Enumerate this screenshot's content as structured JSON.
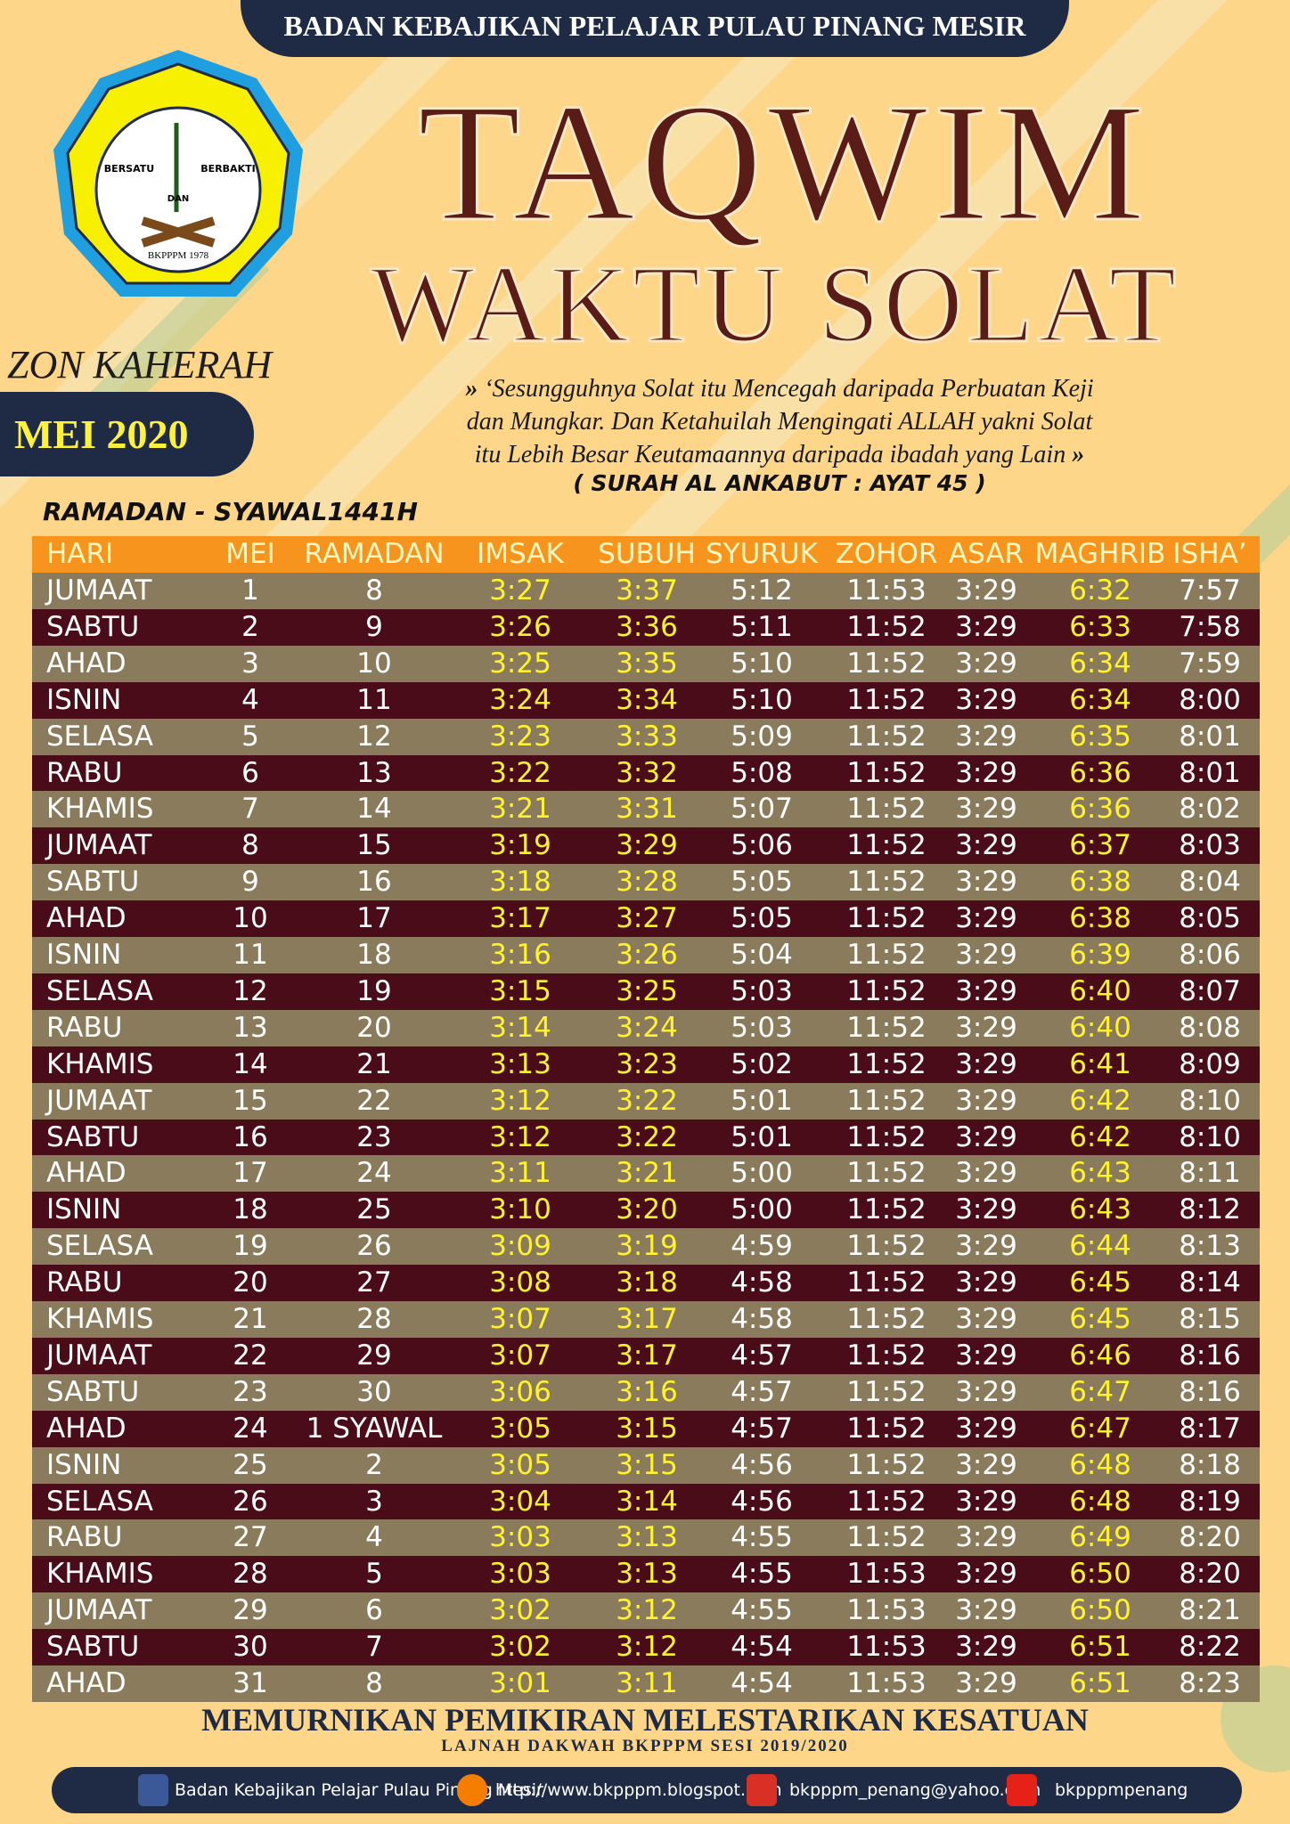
{
  "header": {
    "banner": "BADAN KEBAJIKAN PELAJAR PULAU PINANG MESIR",
    "title_line1": "TAQWIM",
    "title_line2": "WAKTU SOLAT",
    "zone": "ZON KAHERAH",
    "month": "MEI 2020",
    "period": "RAMADAN  - SYAWAL1441H"
  },
  "logo": {
    "left": "BERSATU",
    "right": "BERBAKTI",
    "middle": "DAN",
    "ring": "BKPPPM 1978"
  },
  "quote": {
    "open": "»",
    "close": "»",
    "lines": [
      "‘Sesungguhnya Solat itu Mencegah daripada Perbuatan Keji",
      "dan Mungkar. Dan Ketahuilah Mengingati ALLAH yakni Solat",
      "itu Lebih Besar Keutamaannya daripada ibadah yang Lain"
    ],
    "source": "( SURAH AL ANKABUT : AYAT 45 )"
  },
  "table": {
    "header": [
      "HARI",
      "MEI",
      "RAMADAN",
      "IMSAK",
      "SUBUH",
      "SYURUK",
      "ZOHOR",
      "ASAR",
      "MAGHRIB",
      "ISHA’"
    ],
    "rows": [
      [
        "JUMAAT",
        "1",
        "8",
        "3:27",
        "3:37",
        "5:12",
        "11:53",
        "3:29",
        "6:32",
        "7:57"
      ],
      [
        "SABTU",
        "2",
        "9",
        "3:26",
        "3:36",
        "5:11",
        "11:52",
        "3:29",
        "6:33",
        "7:58"
      ],
      [
        "AHAD",
        "3",
        "10",
        "3:25",
        "3:35",
        "5:10",
        "11:52",
        "3:29",
        "6:34",
        "7:59"
      ],
      [
        "ISNIN",
        "4",
        "11",
        "3:24",
        "3:34",
        "5:10",
        "11:52",
        "3:29",
        "6:34",
        "8:00"
      ],
      [
        "SELASA",
        "5",
        "12",
        "3:23",
        "3:33",
        "5:09",
        "11:52",
        "3:29",
        "6:35",
        "8:01"
      ],
      [
        "RABU",
        "6",
        "13",
        "3:22",
        "3:32",
        "5:08",
        "11:52",
        "3:29",
        "6:36",
        "8:01"
      ],
      [
        "KHAMIS",
        "7",
        "14",
        "3:21",
        "3:31",
        "5:07",
        "11:52",
        "3:29",
        "6:36",
        "8:02"
      ],
      [
        "JUMAAT",
        "8",
        "15",
        "3:19",
        "3:29",
        "5:06",
        "11:52",
        "3:29",
        "6:37",
        "8:03"
      ],
      [
        "SABTU",
        "9",
        "16",
        "3:18",
        "3:28",
        "5:05",
        "11:52",
        "3:29",
        "6:38",
        "8:04"
      ],
      [
        "AHAD",
        "10",
        "17",
        "3:17",
        "3:27",
        "5:05",
        "11:52",
        "3:29",
        "6:38",
        "8:05"
      ],
      [
        "ISNIN",
        "11",
        "18",
        "3:16",
        "3:26",
        "5:04",
        "11:52",
        "3:29",
        "6:39",
        "8:06"
      ],
      [
        "SELASA",
        "12",
        "19",
        "3:15",
        "3:25",
        "5:03",
        "11:52",
        "3:29",
        "6:40",
        "8:07"
      ],
      [
        "RABU",
        "13",
        "20",
        "3:14",
        "3:24",
        "5:03",
        "11:52",
        "3:29",
        "6:40",
        "8:08"
      ],
      [
        "KHAMIS",
        "14",
        "21",
        "3:13",
        "3:23",
        "5:02",
        "11:52",
        "3:29",
        "6:41",
        "8:09"
      ],
      [
        "JUMAAT",
        "15",
        "22",
        "3:12",
        "3:22",
        "5:01",
        "11:52",
        "3:29",
        "6:42",
        "8:10"
      ],
      [
        "SABTU",
        "16",
        "23",
        "3:12",
        "3:22",
        "5:01",
        "11:52",
        "3:29",
        "6:42",
        "8:10"
      ],
      [
        "AHAD",
        "17",
        "24",
        "3:11",
        "3:21",
        "5:00",
        "11:52",
        "3:29",
        "6:43",
        "8:11"
      ],
      [
        "ISNIN",
        "18",
        "25",
        "3:10",
        "3:20",
        "5:00",
        "11:52",
        "3:29",
        "6:43",
        "8:12"
      ],
      [
        "SELASA",
        "19",
        "26",
        "3:09",
        "3:19",
        "4:59",
        "11:52",
        "3:29",
        "6:44",
        "8:13"
      ],
      [
        "RABU",
        "20",
        "27",
        "3:08",
        "3:18",
        "4:58",
        "11:52",
        "3:29",
        "6:45",
        "8:14"
      ],
      [
        "KHAMIS",
        "21",
        "28",
        "3:07",
        "3:17",
        "4:58",
        "11:52",
        "3:29",
        "6:45",
        "8:15"
      ],
      [
        "JUMAAT",
        "22",
        "29",
        "3:07",
        "3:17",
        "4:57",
        "11:52",
        "3:29",
        "6:46",
        "8:16"
      ],
      [
        "SABTU",
        "23",
        "30",
        "3:06",
        "3:16",
        "4:57",
        "11:52",
        "3:29",
        "6:47",
        "8:16"
      ],
      [
        "AHAD",
        "24",
        "1 SYAWAL",
        "3:05",
        "3:15",
        "4:57",
        "11:52",
        "3:29",
        "6:47",
        "8:17"
      ],
      [
        "ISNIN",
        "25",
        "2",
        "3:05",
        "3:15",
        "4:56",
        "11:52",
        "3:29",
        "6:48",
        "8:18"
      ],
      [
        "SELASA",
        "26",
        "3",
        "3:04",
        "3:14",
        "4:56",
        "11:52",
        "3:29",
        "6:48",
        "8:19"
      ],
      [
        "RABU",
        "27",
        "4",
        "3:03",
        "3:13",
        "4:55",
        "11:52",
        "3:29",
        "6:49",
        "8:20"
      ],
      [
        "KHAMIS",
        "28",
        "5",
        "3:03",
        "3:13",
        "4:55",
        "11:53",
        "3:29",
        "6:50",
        "8:20"
      ],
      [
        "JUMAAT",
        "29",
        "6",
        "3:02",
        "3:12",
        "4:55",
        "11:53",
        "3:29",
        "6:50",
        "8:21"
      ],
      [
        "SABTU",
        "30",
        "7",
        "3:02",
        "3:12",
        "4:54",
        "11:53",
        "3:29",
        "6:51",
        "8:22"
      ],
      [
        "AHAD",
        "31",
        "8",
        "3:01",
        "3:11",
        "4:54",
        "11:53",
        "3:29",
        "6:51",
        "8:23"
      ]
    ]
  },
  "footer": {
    "motto": "MEMURNIKAN PEMIKIRAN MELESTARIKAN KESATUAN",
    "session": "LAJNAH DAKWAH BKPPPM SESI 2019/2020",
    "facebook": "Badan Kebajikan Pelajar Pulau Pinang Mesir",
    "blog": "http://www.bkpppm.blogspot.com",
    "email": "bkpppm_penang@yahoo.com",
    "youtube": "bkpppmpenang"
  }
}
